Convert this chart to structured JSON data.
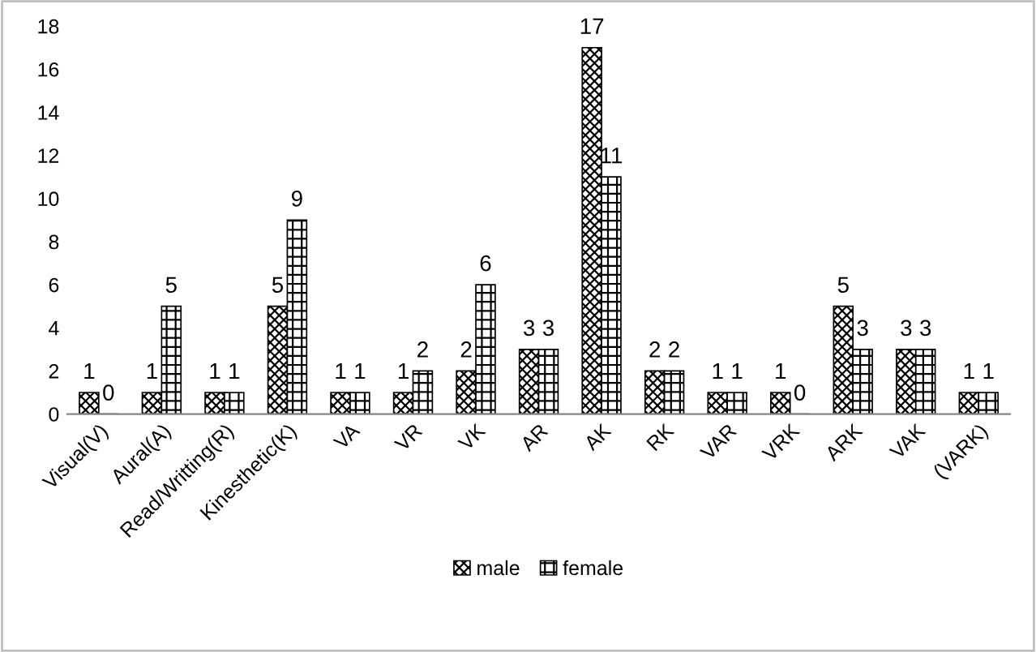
{
  "chart_data": {
    "type": "bar",
    "categories": [
      "Visual(V)",
      "Aural(A)",
      "Read/Writting(R)",
      "Kinesthetic(K)",
      "VA",
      "VR",
      "VK",
      "AR",
      "AK",
      "RK",
      "VAR",
      "VRK",
      "ARK",
      "VAK",
      "(VARK)"
    ],
    "series": [
      {
        "name": "male",
        "color": "#000000",
        "values": [
          1,
          1,
          1,
          5,
          1,
          1,
          2,
          3,
          17,
          2,
          1,
          1,
          5,
          3,
          1
        ]
      },
      {
        "name": "female",
        "color": "#000000",
        "values": [
          0,
          5,
          1,
          9,
          1,
          2,
          6,
          3,
          11,
          2,
          1,
          0,
          3,
          3,
          1
        ]
      }
    ],
    "ylim": [
      0,
      18
    ],
    "yticks": [
      0,
      2,
      4,
      6,
      8,
      10,
      12,
      14,
      16,
      18
    ],
    "data_labels": true,
    "legend": "bottom",
    "grid": false
  }
}
